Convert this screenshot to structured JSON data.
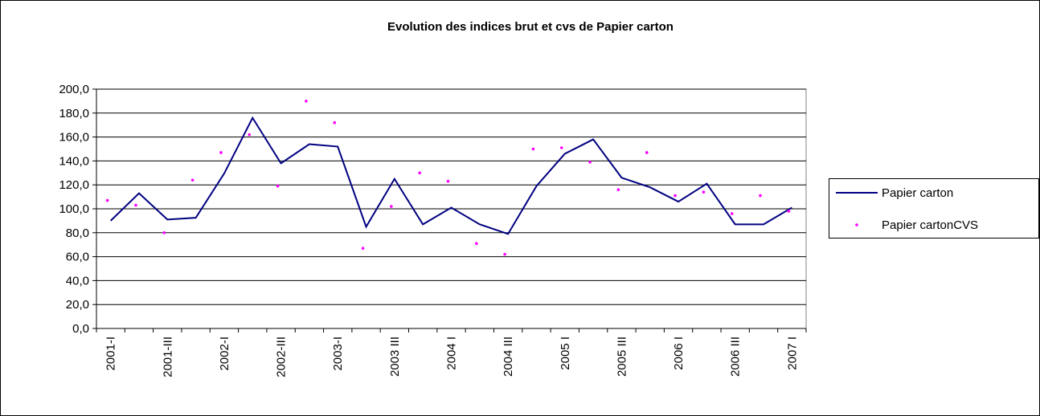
{
  "chart_data": {
    "type": "line",
    "title": "Evolution des indices brut et cvs de Papier carton",
    "categories": [
      "2001-I",
      null,
      "2001-III",
      null,
      "2002-I",
      null,
      "2002-III",
      null,
      "2003-I",
      null,
      "2003 III",
      null,
      "2004 I",
      null,
      "2004 III",
      null,
      "2005 I",
      null,
      "2005 III",
      null,
      "2006 I",
      null,
      "2006 III",
      null,
      "2007 I"
    ],
    "series": [
      {
        "name": "Papier carton",
        "color": "#000080",
        "style": "line",
        "values": [
          90,
          113,
          91,
          92.5,
          129.5,
          176,
          138,
          154,
          152,
          85,
          125,
          87,
          101,
          87,
          79,
          119,
          146,
          158,
          126,
          118,
          106,
          121,
          87,
          87,
          101
        ]
      },
      {
        "name": "Papier cartonCVS",
        "color": "#ff00ff",
        "style": "marker",
        "values": [
          107,
          103,
          80,
          124,
          147,
          162,
          119,
          190,
          172,
          67,
          102,
          130,
          123,
          71,
          62,
          150,
          151,
          139,
          116,
          147,
          111,
          114,
          96,
          111,
          98
        ]
      }
    ],
    "ylim": [
      0,
      200
    ],
    "yticks": [
      {
        "value": 0,
        "label": "0,0"
      },
      {
        "value": 20,
        "label": "20,0"
      },
      {
        "value": 40,
        "label": "40,0"
      },
      {
        "value": 60,
        "label": "60,0"
      },
      {
        "value": 80,
        "label": "80,0"
      },
      {
        "value": 100,
        "label": "100,0"
      },
      {
        "value": 120,
        "label": "120,0"
      },
      {
        "value": 140,
        "label": "140,0"
      },
      {
        "value": 160,
        "label": "160,0"
      },
      {
        "value": 180,
        "label": "180,0"
      },
      {
        "value": 200,
        "label": "200,0"
      }
    ],
    "grid": true,
    "legend": "right"
  }
}
